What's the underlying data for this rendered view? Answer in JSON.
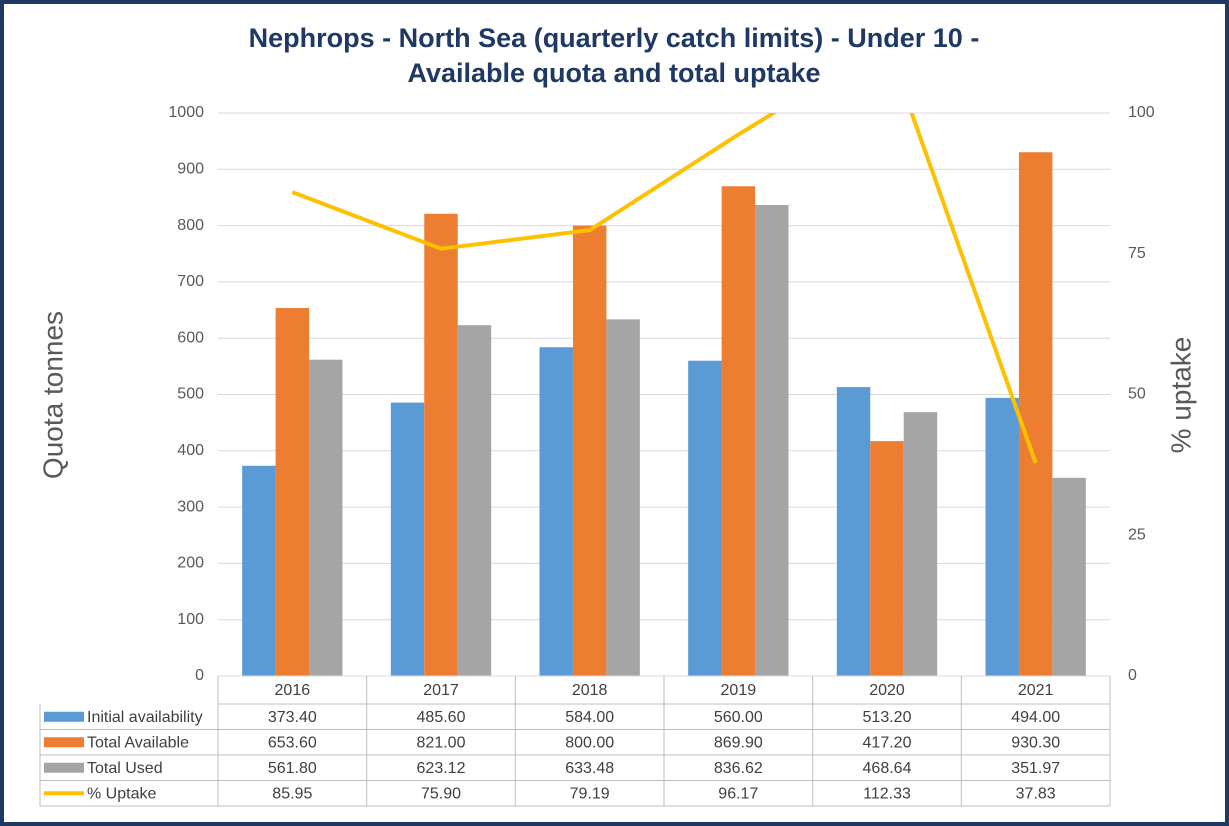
{
  "chart_data": {
    "type": "bar",
    "title": "Nephrops - North Sea (quarterly catch limits) - Under 10 -",
    "subtitle": "Available quota and total uptake",
    "y_label": "Quota tonnes",
    "y2_label": "% uptake",
    "categories": [
      "2016",
      "2017",
      "2018",
      "2019",
      "2020",
      "2021"
    ],
    "series": [
      {
        "name": "Initial availability",
        "color": "#5b9bd5",
        "type": "bar",
        "values": [
          373.4,
          485.6,
          584.0,
          560.0,
          513.2,
          494.0
        ],
        "value_labels": [
          "373.40",
          "485.60",
          "584.00",
          "560.00",
          "513.20",
          "494.00"
        ]
      },
      {
        "name": "Total Available",
        "color": "#ed7d31",
        "type": "bar",
        "values": [
          653.6,
          821.0,
          800.0,
          869.9,
          417.2,
          930.3
        ],
        "value_labels": [
          "653.60",
          "821.00",
          "800.00",
          "869.90",
          "417.20",
          "930.30"
        ]
      },
      {
        "name": "Total Used",
        "color": "#a5a5a5",
        "type": "bar",
        "values": [
          561.8,
          623.12,
          633.48,
          836.62,
          468.64,
          351.97
        ],
        "value_labels": [
          "561.80",
          "623.12",
          "633.48",
          "836.62",
          "468.64",
          "351.97"
        ]
      },
      {
        "name": "% Uptake",
        "color": "#ffc000",
        "type": "line",
        "axis": "y2",
        "values": [
          85.95,
          75.9,
          79.19,
          96.17,
          112.33,
          37.83
        ],
        "value_labels": [
          "85.95",
          "75.90",
          "79.19",
          "96.17",
          "112.33",
          "37.83"
        ]
      }
    ],
    "ylim": [
      0,
      1000
    ],
    "yticks": [
      0,
      100,
      200,
      300,
      400,
      500,
      600,
      700,
      800,
      900,
      1000
    ],
    "y2lim": [
      0,
      100
    ],
    "y2ticks": [
      0,
      25,
      50,
      75,
      100
    ],
    "grid": true
  }
}
